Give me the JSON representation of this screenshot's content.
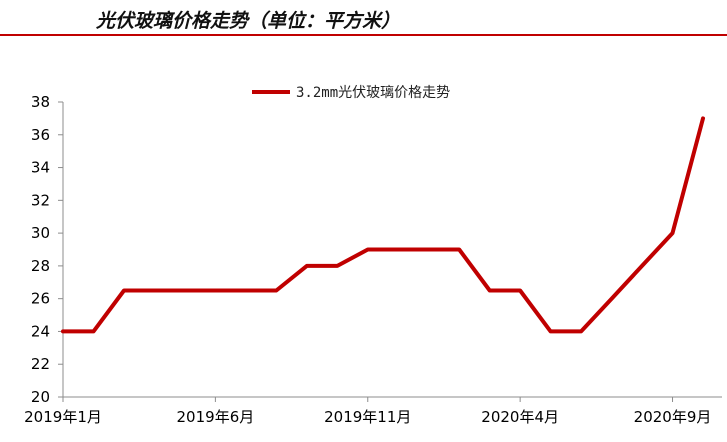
{
  "header": {
    "title": "光伏玻璃价格走势（单位：平方米）",
    "accent_color": "#c00000"
  },
  "chart_data": {
    "type": "line",
    "title": "光伏玻璃价格走势（单位：平方米）",
    "xlabel": "",
    "ylabel": "",
    "ylim": [
      20,
      38
    ],
    "yticks": [
      20,
      22,
      24,
      26,
      28,
      30,
      32,
      34,
      36,
      38
    ],
    "x_tick_labels": [
      "2019年1月",
      "2019年6月",
      "2019年11月",
      "2020年4月",
      "2020年9月"
    ],
    "x_tick_indices": [
      0,
      5,
      10,
      15,
      20
    ],
    "x": [
      "2019-01",
      "2019-02",
      "2019-03",
      "2019-04",
      "2019-05",
      "2019-06",
      "2019-07",
      "2019-08",
      "2019-09",
      "2019-10",
      "2019-11",
      "2019-12",
      "2020-01",
      "2020-02",
      "2020-03",
      "2020-04",
      "2020-05",
      "2020-06",
      "2020-07",
      "2020-08",
      "2020-09",
      "2020-10"
    ],
    "series": [
      {
        "name": "3.2mm光伏玻璃价格走势",
        "color": "#c00000",
        "values": [
          24,
          24,
          26.5,
          26.5,
          26.5,
          26.5,
          26.5,
          26.5,
          28,
          28,
          29,
          29,
          29,
          29,
          26.5,
          26.5,
          24,
          24,
          26,
          28,
          30,
          37
        ]
      }
    ],
    "legend_position": "top-center",
    "grid": false
  }
}
